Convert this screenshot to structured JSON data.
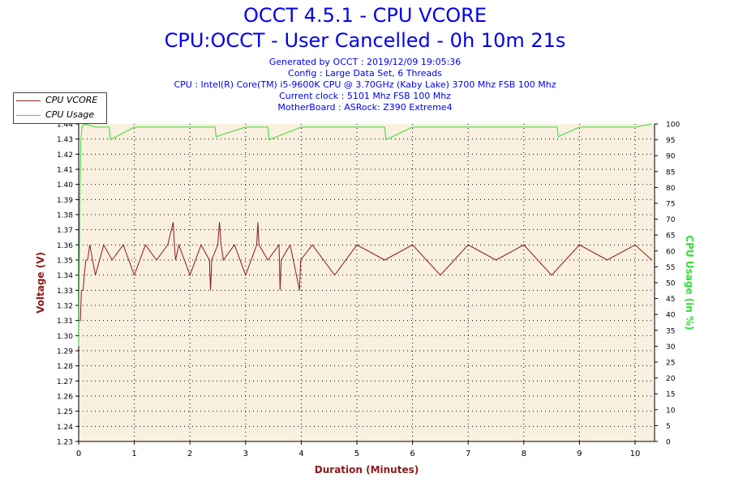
{
  "header": {
    "title": "OCCT 4.5.1 - CPU VCORE",
    "subtitle": "CPU:OCCT - User Cancelled - 0h 10m 21s",
    "info_lines": [
      "Generated by OCCT : 2019/12/09 19:05:36",
      "Config : Large Data Set, 6 Threads",
      "CPU : Intel(R) Core(TM) i5-9600K CPU @ 3.70GHz (Kaby Lake) 3700 Mhz FSB 100 Mhz",
      "Current clock : 5101 Mhz FSB 100 Mhz",
      "MotherBoard : ASRock: Z390 Extreme4"
    ]
  },
  "legend": {
    "placement": "top-left",
    "items": [
      {
        "label": "CPU VCORE",
        "color": "#8b1a1a"
      },
      {
        "label": "CPU Usage",
        "color": "#33dd33"
      }
    ]
  },
  "chart_data": {
    "type": "line",
    "xlabel": "Duration (Minutes)",
    "ylabel": "Voltage (V)",
    "y2label": "CPU Usage (in %)",
    "xlim": [
      0,
      10.35
    ],
    "ylim": [
      1.23,
      1.44
    ],
    "y2lim": [
      0,
      100
    ],
    "x_ticks": [
      "0",
      "1",
      "2",
      "3",
      "4",
      "5",
      "6",
      "7",
      "8",
      "9",
      "10"
    ],
    "y_ticks": [
      "1.23",
      "1.24",
      "1.25",
      "1.26",
      "1.27",
      "1.28",
      "1.29",
      "1.30",
      "1.31",
      "1.32",
      "1.33",
      "1.34",
      "1.35",
      "1.36",
      "1.37",
      "1.38",
      "1.39",
      "1.40",
      "1.41",
      "1.42",
      "1.43",
      "1.44"
    ],
    "y2_ticks": [
      "0",
      "5",
      "10",
      "15",
      "20",
      "25",
      "30",
      "35",
      "40",
      "45",
      "50",
      "55",
      "60",
      "65",
      "70",
      "75",
      "80",
      "85",
      "90",
      "95",
      "100"
    ],
    "grid": true,
    "colors": {
      "plot_bg": "#faf0e0",
      "vcore": "#8b1a1a",
      "usage": "#33dd33",
      "axis_label_x": "#8b1a1a",
      "axis_label_y": "#8b1a1a",
      "axis_label_y2": "#33dd33"
    },
    "series": [
      {
        "name": "CPU VCORE",
        "axis": "left",
        "x": [
          0,
          0.03,
          0.05,
          0.08,
          0.1,
          0.13,
          0.16,
          0.2,
          0.3,
          0.45,
          0.6,
          0.8,
          1.0,
          1.2,
          1.4,
          1.6,
          1.7,
          1.72,
          1.74,
          1.8,
          2.0,
          2.2,
          2.35,
          2.37,
          2.39,
          2.5,
          2.53,
          2.56,
          2.6,
          2.8,
          3.0,
          3.2,
          3.22,
          3.24,
          3.4,
          3.6,
          3.62,
          3.64,
          3.8,
          3.97,
          3.99,
          4.2,
          4.6,
          5.0,
          5.5,
          6.0,
          6.5,
          7.0,
          7.5,
          8.0,
          8.5,
          9.0,
          9.5,
          10.0,
          10.3
        ],
        "values": [
          1.31,
          1.31,
          1.33,
          1.33,
          1.34,
          1.35,
          1.35,
          1.36,
          1.34,
          1.36,
          1.35,
          1.36,
          1.34,
          1.36,
          1.35,
          1.36,
          1.375,
          1.36,
          1.35,
          1.36,
          1.34,
          1.36,
          1.35,
          1.33,
          1.35,
          1.36,
          1.375,
          1.36,
          1.35,
          1.36,
          1.34,
          1.36,
          1.375,
          1.36,
          1.35,
          1.36,
          1.33,
          1.35,
          1.36,
          1.33,
          1.35,
          1.36,
          1.34,
          1.36,
          1.35,
          1.36,
          1.34,
          1.36,
          1.35,
          1.36,
          1.34,
          1.36,
          1.35,
          1.36,
          1.35
        ]
      },
      {
        "name": "CPU Usage",
        "axis": "right",
        "x": [
          0,
          0.02,
          0.04,
          0.06,
          0.1,
          0.3,
          0.55,
          0.57,
          1.0,
          2.0,
          2.45,
          2.47,
          3.0,
          3.4,
          3.42,
          4.0,
          5.0,
          5.5,
          5.52,
          6.0,
          7.0,
          8.0,
          8.6,
          8.62,
          9.0,
          10.0,
          10.3
        ],
        "values": [
          30,
          75,
          95,
          99,
          100,
          99,
          99,
          95,
          99,
          99,
          99,
          96,
          99,
          99,
          95,
          99,
          99,
          99,
          95,
          99,
          99,
          99,
          99,
          96,
          99,
          99,
          100
        ]
      }
    ]
  }
}
